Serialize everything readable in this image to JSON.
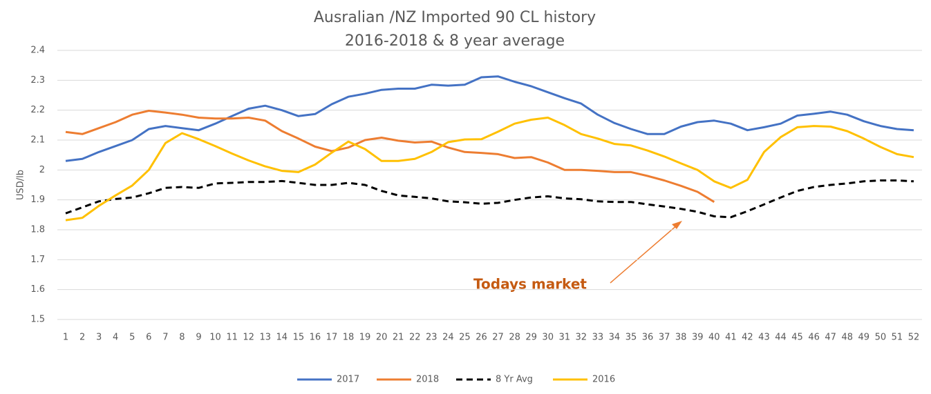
{
  "chart_data": {
    "type": "line",
    "title": "Ausralian /NZ Imported 90 CL history",
    "subtitle": "2016-2018 & 8 year average",
    "ylabel": "USD/lb",
    "annotation": "Todays market",
    "categories": [
      1,
      2,
      3,
      4,
      5,
      6,
      7,
      8,
      9,
      10,
      11,
      12,
      13,
      14,
      15,
      16,
      17,
      18,
      19,
      20,
      21,
      22,
      23,
      24,
      25,
      26,
      27,
      28,
      29,
      30,
      31,
      32,
      33,
      34,
      35,
      36,
      37,
      38,
      39,
      40,
      41,
      42,
      43,
      44,
      45,
      46,
      47,
      48,
      49,
      50,
      51,
      52
    ],
    "ylim": [
      1.5,
      2.4
    ],
    "yticks": [
      1.5,
      1.6,
      1.7,
      1.8,
      1.9,
      2,
      2.1,
      2.2,
      2.3,
      2.4
    ],
    "grid": true,
    "legend": "bottom",
    "series": [
      {
        "name": "2017",
        "color": "#4472c4",
        "dashed": false,
        "values": [
          2.03,
          2.037,
          2.06,
          2.08,
          2.1,
          2.137,
          2.147,
          2.14,
          2.133,
          2.155,
          2.18,
          2.205,
          2.215,
          2.2,
          2.18,
          2.187,
          2.22,
          2.245,
          2.255,
          2.268,
          2.272,
          2.272,
          2.285,
          2.282,
          2.285,
          2.31,
          2.313,
          2.295,
          2.28,
          2.26,
          2.24,
          2.222,
          2.185,
          2.157,
          2.137,
          2.12,
          2.12,
          2.145,
          2.16,
          2.165,
          2.155,
          2.133,
          2.143,
          2.155,
          2.182,
          2.188,
          2.195,
          2.185,
          2.163,
          2.147,
          2.137,
          2.133
        ]
      },
      {
        "name": "2018",
        "color": "#ed7d31",
        "dashed": false,
        "values": [
          2.127,
          2.12,
          2.14,
          2.16,
          2.185,
          2.198,
          2.192,
          2.185,
          2.175,
          2.172,
          2.172,
          2.175,
          2.165,
          2.13,
          2.105,
          2.078,
          2.063,
          2.075,
          2.1,
          2.108,
          2.098,
          2.092,
          2.095,
          2.075,
          2.06,
          2.057,
          2.053,
          2.04,
          2.043,
          2.025,
          2.0,
          2.0,
          1.997,
          1.993,
          1.993,
          1.98,
          1.965,
          1.947,
          1.927,
          1.893,
          null,
          null,
          null,
          null,
          null,
          null,
          null,
          null,
          null,
          null,
          null,
          null
        ]
      },
      {
        "name": "8 Yr Avg",
        "color": "#000000",
        "dashed": true,
        "values": [
          1.855,
          1.875,
          1.895,
          1.903,
          1.908,
          1.922,
          1.94,
          1.943,
          1.94,
          1.955,
          1.957,
          1.96,
          1.96,
          1.963,
          1.957,
          1.95,
          1.95,
          1.957,
          1.95,
          1.93,
          1.915,
          1.91,
          1.905,
          1.895,
          1.892,
          1.887,
          1.89,
          1.9,
          1.908,
          1.912,
          1.905,
          1.902,
          1.895,
          1.893,
          1.893,
          1.885,
          1.878,
          1.87,
          1.86,
          1.845,
          1.842,
          1.862,
          1.885,
          1.908,
          1.93,
          1.943,
          1.95,
          1.955,
          1.962,
          1.965,
          1.965,
          1.962
        ]
      },
      {
        "name": "2016",
        "color": "#ffc000",
        "dashed": false,
        "values": [
          1.832,
          1.84,
          1.88,
          1.915,
          1.948,
          2.0,
          2.09,
          2.123,
          2.103,
          2.08,
          2.055,
          2.032,
          2.012,
          1.997,
          1.993,
          2.018,
          2.058,
          2.095,
          2.07,
          2.03,
          2.03,
          2.037,
          2.06,
          2.093,
          2.102,
          2.103,
          2.128,
          2.155,
          2.168,
          2.175,
          2.15,
          2.12,
          2.105,
          2.087,
          2.082,
          2.065,
          2.045,
          2.022,
          2.0,
          1.962,
          1.94,
          1.967,
          2.06,
          2.11,
          2.143,
          2.147,
          2.145,
          2.13,
          2.105,
          2.077,
          2.053,
          2.043
        ]
      }
    ]
  }
}
